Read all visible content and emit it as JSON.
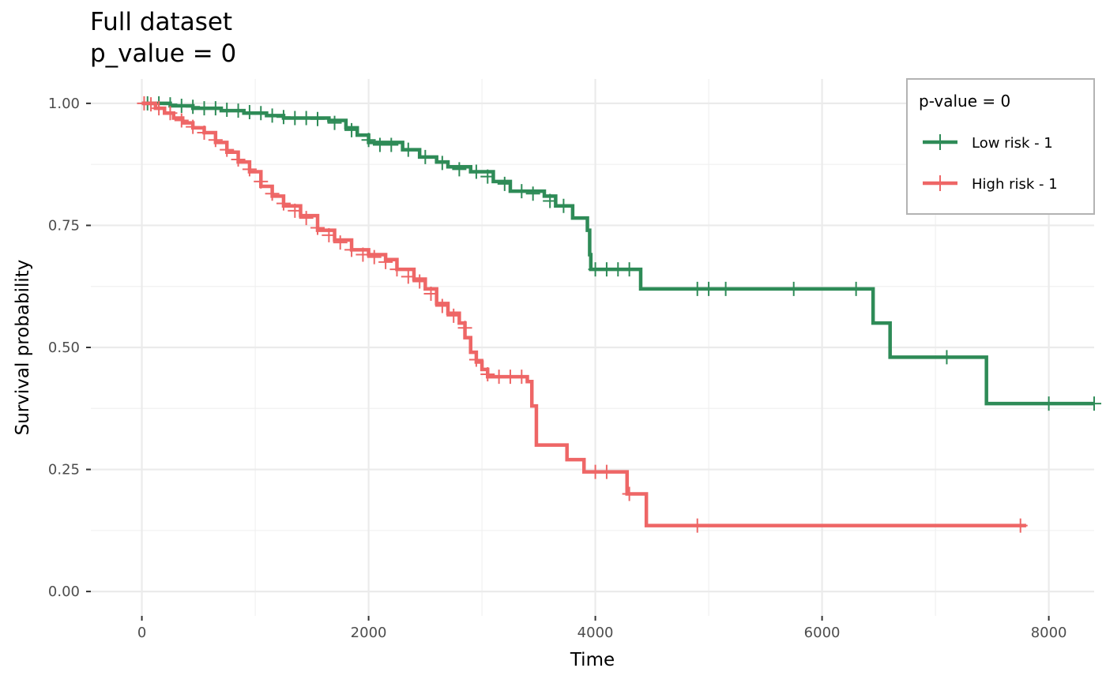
{
  "chart_data": {
    "type": "line",
    "subtype": "kaplan-meier step curve",
    "title": "Full dataset",
    "subtitle": "p_value = 0",
    "xlabel": "Time",
    "ylabel": "Survival probability",
    "xlim": [
      -450,
      8400
    ],
    "ylim": [
      -0.05,
      1.05
    ],
    "x_ticks": [
      0,
      2000,
      4000,
      6000,
      8000
    ],
    "x_tick_labels": [
      "0",
      "2000",
      "4000",
      "6000",
      "8000"
    ],
    "y_ticks": [
      0,
      0.25,
      0.5,
      0.75,
      1.0
    ],
    "y_tick_labels": [
      "0.00",
      "0.25",
      "0.50",
      "0.75",
      "1.00"
    ],
    "grid": true,
    "legend": {
      "title": "p-value = 0",
      "position": "top-right"
    },
    "series": [
      {
        "name": "Low risk - 1",
        "color": "#2E8B57",
        "steps": [
          [
            0,
            1.0
          ],
          [
            250,
            0.995
          ],
          [
            450,
            0.99
          ],
          [
            700,
            0.985
          ],
          [
            900,
            0.98
          ],
          [
            1100,
            0.975
          ],
          [
            1250,
            0.97
          ],
          [
            1650,
            0.965
          ],
          [
            1800,
            0.95
          ],
          [
            1900,
            0.935
          ],
          [
            2000,
            0.92
          ],
          [
            2300,
            0.905
          ],
          [
            2450,
            0.89
          ],
          [
            2600,
            0.88
          ],
          [
            2700,
            0.87
          ],
          [
            2900,
            0.86
          ],
          [
            3100,
            0.84
          ],
          [
            3250,
            0.82
          ],
          [
            3550,
            0.81
          ],
          [
            3650,
            0.79
          ],
          [
            3800,
            0.765
          ],
          [
            3930,
            0.74
          ],
          [
            3950,
            0.69
          ],
          [
            3960,
            0.66
          ],
          [
            4400,
            0.62
          ],
          [
            6450,
            0.55
          ],
          [
            6600,
            0.48
          ],
          [
            7450,
            0.385
          ],
          [
            8400,
            0.385
          ]
        ],
        "censored": [
          [
            50,
            1.0
          ],
          [
            150,
            1.0
          ],
          [
            250,
            0.998
          ],
          [
            350,
            0.995
          ],
          [
            450,
            0.993
          ],
          [
            550,
            0.99
          ],
          [
            650,
            0.99
          ],
          [
            750,
            0.987
          ],
          [
            850,
            0.985
          ],
          [
            950,
            0.982
          ],
          [
            1050,
            0.98
          ],
          [
            1150,
            0.975
          ],
          [
            1250,
            0.972
          ],
          [
            1350,
            0.97
          ],
          [
            1450,
            0.97
          ],
          [
            1550,
            0.968
          ],
          [
            1700,
            0.96
          ],
          [
            1850,
            0.945
          ],
          [
            2000,
            0.925
          ],
          [
            2100,
            0.915
          ],
          [
            2200,
            0.915
          ],
          [
            2350,
            0.905
          ],
          [
            2500,
            0.89
          ],
          [
            2650,
            0.878
          ],
          [
            2800,
            0.865
          ],
          [
            2950,
            0.86
          ],
          [
            3050,
            0.85
          ],
          [
            3200,
            0.835
          ],
          [
            3350,
            0.82
          ],
          [
            3450,
            0.815
          ],
          [
            3600,
            0.8
          ],
          [
            3720,
            0.79
          ],
          [
            4000,
            0.66
          ],
          [
            4100,
            0.66
          ],
          [
            4200,
            0.66
          ],
          [
            4300,
            0.66
          ],
          [
            4900,
            0.62
          ],
          [
            5000,
            0.62
          ],
          [
            5150,
            0.62
          ],
          [
            5750,
            0.62
          ],
          [
            6300,
            0.62
          ],
          [
            7100,
            0.48
          ],
          [
            8000,
            0.385
          ],
          [
            8400,
            0.385
          ]
        ]
      },
      {
        "name": "High risk - 1",
        "color": "#EE6666",
        "steps": [
          [
            0,
            1.0
          ],
          [
            120,
            0.99
          ],
          [
            200,
            0.98
          ],
          [
            280,
            0.97
          ],
          [
            360,
            0.96
          ],
          [
            450,
            0.95
          ],
          [
            550,
            0.94
          ],
          [
            650,
            0.92
          ],
          [
            750,
            0.9
          ],
          [
            850,
            0.88
          ],
          [
            950,
            0.86
          ],
          [
            1050,
            0.83
          ],
          [
            1150,
            0.81
          ],
          [
            1250,
            0.79
          ],
          [
            1400,
            0.77
          ],
          [
            1550,
            0.74
          ],
          [
            1700,
            0.72
          ],
          [
            1850,
            0.7
          ],
          [
            2000,
            0.69
          ],
          [
            2150,
            0.68
          ],
          [
            2250,
            0.66
          ],
          [
            2400,
            0.64
          ],
          [
            2500,
            0.62
          ],
          [
            2600,
            0.59
          ],
          [
            2700,
            0.57
          ],
          [
            2800,
            0.55
          ],
          [
            2850,
            0.52
          ],
          [
            2900,
            0.49
          ],
          [
            2950,
            0.47
          ],
          [
            3000,
            0.455
          ],
          [
            3050,
            0.44
          ],
          [
            3400,
            0.43
          ],
          [
            3440,
            0.38
          ],
          [
            3480,
            0.3
          ],
          [
            3750,
            0.27
          ],
          [
            3900,
            0.245
          ],
          [
            4280,
            0.2
          ],
          [
            4450,
            0.135
          ],
          [
            7800,
            0.135
          ]
        ],
        "censored": [
          [
            20,
            1.0
          ],
          [
            80,
            0.998
          ],
          [
            150,
            0.99
          ],
          [
            250,
            0.98
          ],
          [
            350,
            0.965
          ],
          [
            450,
            0.952
          ],
          [
            550,
            0.94
          ],
          [
            650,
            0.925
          ],
          [
            750,
            0.905
          ],
          [
            850,
            0.885
          ],
          [
            950,
            0.865
          ],
          [
            1050,
            0.84
          ],
          [
            1150,
            0.815
          ],
          [
            1250,
            0.795
          ],
          [
            1350,
            0.78
          ],
          [
            1450,
            0.765
          ],
          [
            1550,
            0.745
          ],
          [
            1650,
            0.73
          ],
          [
            1750,
            0.715
          ],
          [
            1850,
            0.7
          ],
          [
            1950,
            0.69
          ],
          [
            2050,
            0.685
          ],
          [
            2150,
            0.675
          ],
          [
            2250,
            0.66
          ],
          [
            2350,
            0.645
          ],
          [
            2450,
            0.635
          ],
          [
            2550,
            0.61
          ],
          [
            2650,
            0.585
          ],
          [
            2750,
            0.565
          ],
          [
            2850,
            0.54
          ],
          [
            2950,
            0.475
          ],
          [
            3050,
            0.445
          ],
          [
            3150,
            0.44
          ],
          [
            3250,
            0.44
          ],
          [
            3350,
            0.44
          ],
          [
            4000,
            0.245
          ],
          [
            4100,
            0.245
          ],
          [
            4300,
            0.2
          ],
          [
            4900,
            0.135
          ],
          [
            7750,
            0.135
          ]
        ]
      }
    ]
  }
}
